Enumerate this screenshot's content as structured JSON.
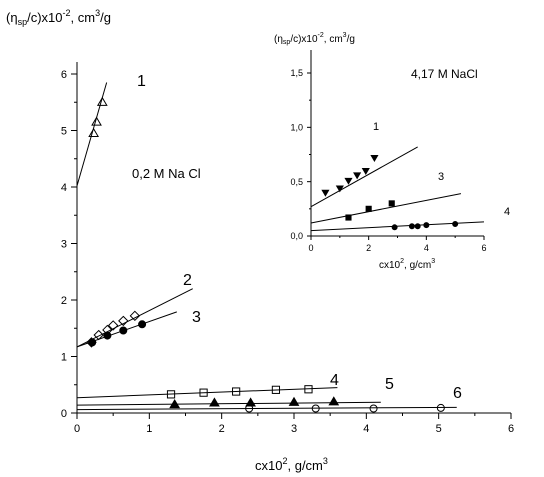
{
  "chart_data": [
    {
      "type": "scatter",
      "title": "",
      "ylabel": "(η_sp/c)x10^-2, cm^3/g",
      "xlabel": "cx10^2, g/cm^3",
      "annotation": "0,2 M Na Cl",
      "xlim": [
        0,
        6
      ],
      "ylim": [
        0,
        6.5
      ],
      "xticks": [
        "0",
        "1",
        "2",
        "3",
        "4",
        "5",
        "6"
      ],
      "yticks": [
        "0",
        "1",
        "2",
        "3",
        "4",
        "5",
        "6"
      ],
      "series": [
        {
          "name": "1",
          "marker": "open-triangle",
          "x": [
            0.23,
            0.27,
            0.35
          ],
          "y": [
            4.95,
            5.15,
            5.5
          ],
          "fit": [
            [
              0.0,
              4.02
            ],
            [
              0.41,
              5.85
            ]
          ]
        },
        {
          "name": "2",
          "marker": "open-diamond",
          "x": [
            0.2,
            0.3,
            0.42,
            0.5,
            0.64,
            0.8
          ],
          "y": [
            1.25,
            1.38,
            1.47,
            1.55,
            1.63,
            1.72
          ],
          "fit": [
            [
              0.0,
              1.17
            ],
            [
              1.6,
              2.2
            ]
          ]
        },
        {
          "name": "3",
          "marker": "filled-circle",
          "x": [
            0.21,
            0.42,
            0.64,
            0.9
          ],
          "y": [
            1.25,
            1.37,
            1.46,
            1.57
          ],
          "fit": [
            [
              0.0,
              1.17
            ],
            [
              1.38,
              1.79
            ]
          ]
        },
        {
          "name": "4",
          "marker": "open-square",
          "x": [
            1.3,
            1.75,
            2.2,
            2.75,
            3.2
          ],
          "y": [
            0.33,
            0.36,
            0.38,
            0.41,
            0.42
          ],
          "fit": [
            [
              0.0,
              0.27
            ],
            [
              3.6,
              0.45
            ]
          ]
        },
        {
          "name": "5",
          "marker": "filled-triangle",
          "x": [
            1.35,
            1.9,
            2.4,
            3.0,
            3.55
          ],
          "y": [
            0.15,
            0.18,
            0.18,
            0.19,
            0.2
          ],
          "fit": [
            [
              0.0,
              0.14
            ],
            [
              4.2,
              0.19
            ]
          ]
        },
        {
          "name": "6",
          "marker": "open-circle",
          "x": [
            2.38,
            3.3,
            4.1,
            5.03
          ],
          "y": [
            0.08,
            0.08,
            0.08,
            0.09
          ],
          "fit": [
            [
              0.0,
              0.06
            ],
            [
              5.25,
              0.1
            ]
          ]
        }
      ]
    },
    {
      "type": "scatter",
      "title": "",
      "ylabel": "(η_sp/c)x10^-2, cm^3/g",
      "xlabel": "cx10^2, g/cm^3",
      "annotation": "4,17 M NaCl",
      "xlim": [
        0,
        6
      ],
      "ylim": [
        0,
        1.6
      ],
      "xticks": [
        "0",
        "2",
        "4",
        "6"
      ],
      "yticks": [
        "0,0",
        "0,5",
        "1,0",
        "1,5"
      ],
      "series": [
        {
          "name": "1",
          "marker": "filled-inverted-triangle",
          "x": [
            0.5,
            1.0,
            1.3,
            1.6,
            1.9,
            2.2
          ],
          "y": [
            0.4,
            0.44,
            0.51,
            0.56,
            0.6,
            0.72
          ],
          "fit": [
            [
              0.0,
              0.27
            ],
            [
              3.7,
              0.82
            ]
          ]
        },
        {
          "name": "3",
          "marker": "filled-square",
          "x": [
            1.3,
            2.0,
            2.8
          ],
          "y": [
            0.17,
            0.25,
            0.3
          ],
          "fit": [
            [
              0.0,
              0.12
            ],
            [
              5.2,
              0.39
            ]
          ]
        },
        {
          "name": "4",
          "marker": "filled-circle",
          "x": [
            2.9,
            3.5,
            3.7,
            4.0,
            5.0
          ],
          "y": [
            0.08,
            0.09,
            0.09,
            0.1,
            0.11
          ],
          "fit": [
            [
              0.0,
              0.05
            ],
            [
              6.0,
              0.13
            ]
          ]
        }
      ]
    }
  ]
}
